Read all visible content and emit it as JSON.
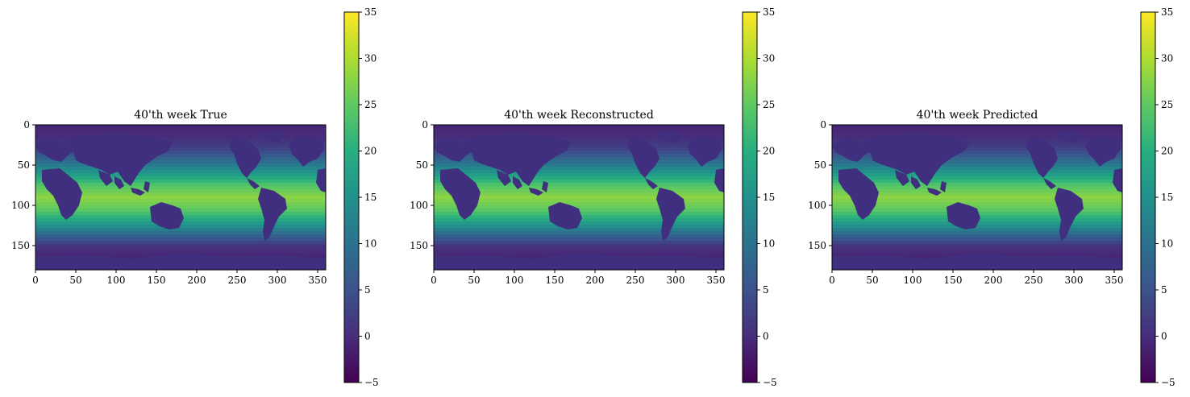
{
  "chart_data": [
    {
      "type": "heatmap",
      "title": "40'th week True",
      "xlabel": "",
      "ylabel": "",
      "xlim": [
        0,
        360
      ],
      "ylim": [
        180,
        0
      ],
      "x_ticks": [
        "0",
        "50",
        "100",
        "150",
        "200",
        "250",
        "300",
        "350"
      ],
      "y_ticks": [
        "0",
        "50",
        "100",
        "150"
      ],
      "colorbar": {
        "min": -5,
        "max": 35,
        "ticks": [
          "35",
          "30",
          "25",
          "20",
          "15",
          "10",
          "5",
          "0",
          "−5"
        ],
        "colormap": "viridis"
      },
      "land_color": "#3f2f7e",
      "zonal_profile_c": [
        [
          0,
          -1
        ],
        [
          15,
          0
        ],
        [
          30,
          3
        ],
        [
          45,
          9
        ],
        [
          60,
          16
        ],
        [
          75,
          24
        ],
        [
          90,
          28
        ],
        [
          105,
          25
        ],
        [
          120,
          18
        ],
        [
          135,
          9
        ],
        [
          150,
          1
        ],
        [
          165,
          -1
        ],
        [
          180,
          -1
        ]
      ],
      "grid": false
    },
    {
      "type": "heatmap",
      "title": "40'th week Reconstructed",
      "xlabel": "",
      "ylabel": "",
      "xlim": [
        0,
        360
      ],
      "ylim": [
        180,
        0
      ],
      "x_ticks": [
        "0",
        "50",
        "100",
        "150",
        "200",
        "250",
        "300",
        "350"
      ],
      "y_ticks": [
        "0",
        "50",
        "100",
        "150"
      ],
      "colorbar": {
        "min": -5,
        "max": 35,
        "ticks": [
          "35",
          "30",
          "25",
          "20",
          "15",
          "10",
          "5",
          "0",
          "−5"
        ],
        "colormap": "viridis"
      },
      "land_color": "#3f2f7e",
      "zonal_profile_c": [
        [
          0,
          -1
        ],
        [
          15,
          0
        ],
        [
          30,
          3
        ],
        [
          45,
          9
        ],
        [
          60,
          16
        ],
        [
          75,
          24
        ],
        [
          90,
          28
        ],
        [
          105,
          25
        ],
        [
          120,
          18
        ],
        [
          135,
          9
        ],
        [
          150,
          1
        ],
        [
          165,
          -1
        ],
        [
          180,
          -1
        ]
      ],
      "grid": false
    },
    {
      "type": "heatmap",
      "title": "40'th week Predicted",
      "xlabel": "",
      "ylabel": "",
      "xlim": [
        0,
        360
      ],
      "ylim": [
        180,
        0
      ],
      "x_ticks": [
        "0",
        "50",
        "100",
        "150",
        "200",
        "250",
        "300",
        "350"
      ],
      "y_ticks": [
        "0",
        "50",
        "100",
        "150"
      ],
      "colorbar": {
        "min": -5,
        "max": 35,
        "ticks": [
          "35",
          "30",
          "25",
          "20",
          "15",
          "10",
          "5",
          "0",
          "−5"
        ],
        "colormap": "viridis"
      },
      "land_color": "#3f2f7e",
      "zonal_profile_c": [
        [
          0,
          -1
        ],
        [
          15,
          0
        ],
        [
          30,
          3
        ],
        [
          45,
          9
        ],
        [
          60,
          16
        ],
        [
          75,
          24
        ],
        [
          90,
          28
        ],
        [
          105,
          25
        ],
        [
          120,
          18
        ],
        [
          135,
          9
        ],
        [
          150,
          1
        ],
        [
          165,
          -1
        ],
        [
          180,
          -1
        ]
      ],
      "grid": false
    }
  ]
}
